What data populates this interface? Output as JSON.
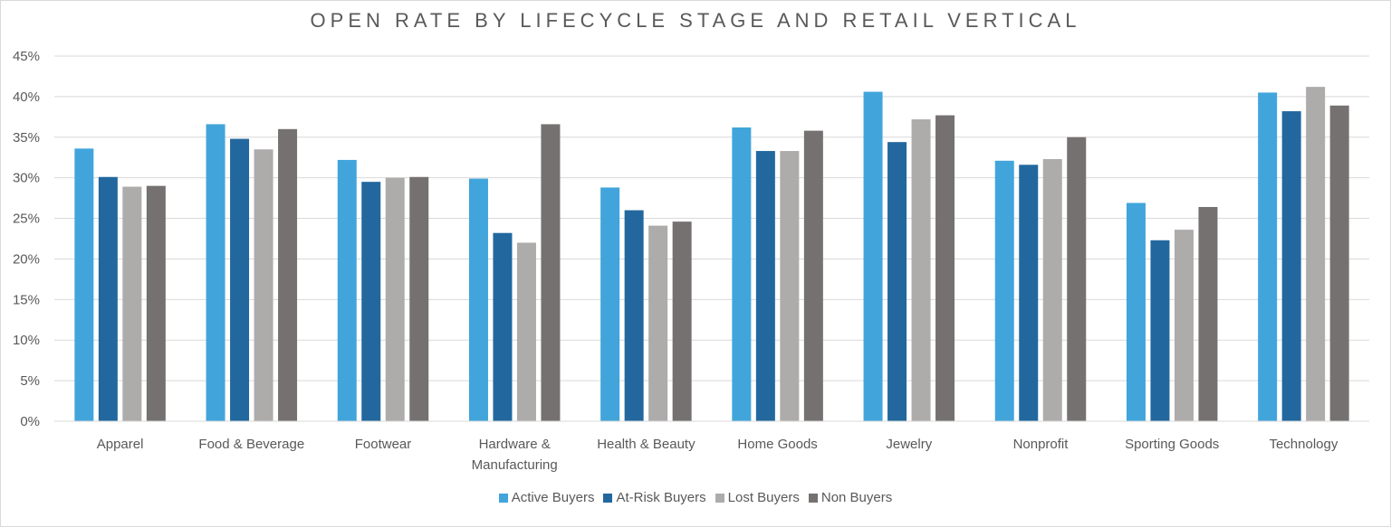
{
  "chart_data": {
    "type": "bar",
    "title": "OPEN RATE BY LIFECYCLE STAGE AND RETAIL VERTICAL",
    "xlabel": "",
    "ylabel": "",
    "ylim": [
      0,
      45
    ],
    "y_ticks": [
      {
        "value": 0,
        "label": "0%"
      },
      {
        "value": 5,
        "label": "5%"
      },
      {
        "value": 10,
        "label": "10%"
      },
      {
        "value": 15,
        "label": "15%"
      },
      {
        "value": 20,
        "label": "20%"
      },
      {
        "value": 25,
        "label": "25%"
      },
      {
        "value": 30,
        "label": "30%"
      },
      {
        "value": 35,
        "label": "35%"
      },
      {
        "value": 40,
        "label": "40%"
      },
      {
        "value": 45,
        "label": "45%"
      }
    ],
    "grid": true,
    "legend_position": "bottom",
    "categories": [
      [
        "Apparel"
      ],
      [
        "Food & Beverage"
      ],
      [
        "Footwear"
      ],
      [
        "Hardware &",
        "Manufacturing"
      ],
      [
        "Health & Beauty"
      ],
      [
        "Home Goods"
      ],
      [
        "Jewelry"
      ],
      [
        "Nonprofit"
      ],
      [
        "Sporting Goods"
      ],
      [
        "Technology"
      ]
    ],
    "series": [
      {
        "name": "Active Buyers",
        "color": "#41a5db",
        "values": [
          33.6,
          36.6,
          32.2,
          29.9,
          28.8,
          36.2,
          40.6,
          32.1,
          26.9,
          40.5
        ]
      },
      {
        "name": "At-Risk Buyers",
        "color": "#22689e",
        "values": [
          30.1,
          34.8,
          29.5,
          23.2,
          26.0,
          33.3,
          34.4,
          31.6,
          22.3,
          38.2
        ]
      },
      {
        "name": "Lost Buyers",
        "color": "#aeabab",
        "values": [
          28.9,
          33.5,
          30.0,
          22.0,
          24.1,
          33.3,
          37.2,
          32.3,
          23.6,
          41.2
        ]
      },
      {
        "name": "Non Buyers",
        "color": "#757171",
        "values": [
          29.0,
          36.0,
          30.1,
          36.6,
          24.6,
          35.8,
          37.7,
          35.0,
          26.4,
          38.9
        ]
      }
    ]
  }
}
